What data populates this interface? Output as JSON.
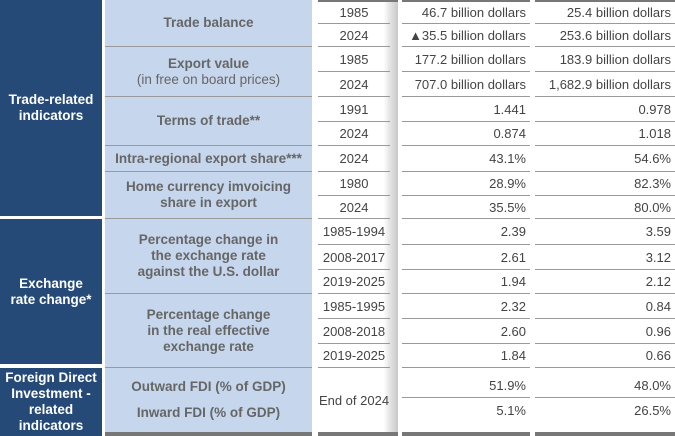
{
  "groups": {
    "trade": "Trade-related indicators",
    "exchange": "Exchange rate change*",
    "fdi": "Foreign Direct Investment -related indicators"
  },
  "indicators": {
    "trade_balance": "Trade balance",
    "export_value": "Export value",
    "export_value_sub": "(in free on board prices)",
    "terms_of_trade": "Terms of trade**",
    "intra_regional": "Intra-regional export share***",
    "home_currency": "Home currency imvoicing share in export",
    "fx_usd": "Percentage change in the exchange rate against the U.S. dollar",
    "reer": "Percentage change in the real effective exchange rate",
    "outward_fdi": "Outward FDI (% of GDP)",
    "inward_fdi": "Inward FDI (% of GDP)"
  },
  "rows": [
    {
      "year": "1985",
      "v1": "46.7 billion dollars",
      "v2": "25.4 billion dollars"
    },
    {
      "year": "2024",
      "v1": "▲35.5 billion dollars",
      "v2": "253.6 billion dollars"
    },
    {
      "year": "1985",
      "v1": "177.2 billion dollars",
      "v2": "183.9 billion dollars"
    },
    {
      "year": "2024",
      "v1": "707.0 billion dollars",
      "v2": "1,682.9 billion dollars"
    },
    {
      "year": "1991",
      "v1": "1.441",
      "v2": "0.978"
    },
    {
      "year": "2024",
      "v1": "0.874",
      "v2": "1.018"
    },
    {
      "year": "2024",
      "v1": "43.1%",
      "v2": "54.6%"
    },
    {
      "year": "1980",
      "v1": "28.9%",
      "v2": "82.3%"
    },
    {
      "year": "2024",
      "v1": "35.5%",
      "v2": "80.0%"
    },
    {
      "year": "1985-1994",
      "v1": "2.39",
      "v2": "3.59"
    },
    {
      "year": "2008-2017",
      "v1": "2.61",
      "v2": "3.12"
    },
    {
      "year": "2019-2025",
      "v1": "1.94",
      "v2": "2.12"
    },
    {
      "year": "1985-1995",
      "v1": "2.32",
      "v2": "0.84"
    },
    {
      "year": "2008-2018",
      "v1": "2.60",
      "v2": "0.96"
    },
    {
      "year": "2019-2025",
      "v1": "1.84",
      "v2": "0.66"
    }
  ],
  "fdi": {
    "year": "End of 2024",
    "outward_v1": "51.9%",
    "outward_v2": "48.0%",
    "inward_v1": "5.1%",
    "inward_v2": "26.5%"
  }
}
